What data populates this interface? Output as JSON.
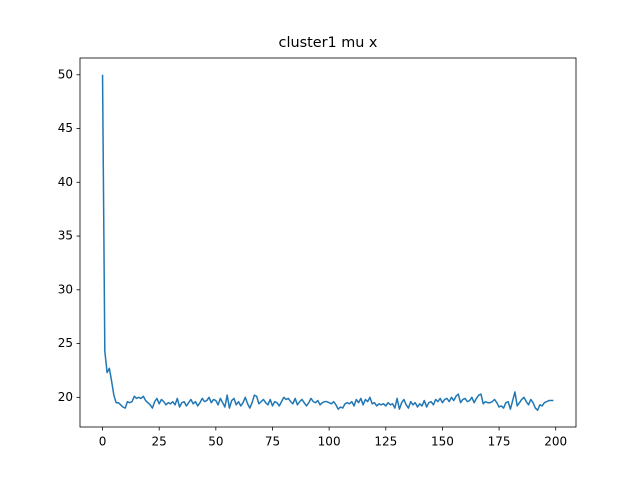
{
  "chart_data": {
    "type": "line",
    "title": "cluster1 mu x",
    "color": "#1f77b4",
    "x": [
      0,
      1,
      2,
      3,
      4,
      5,
      6,
      7,
      8,
      9,
      10,
      11,
      12,
      13,
      14,
      15,
      16,
      17,
      18,
      19,
      20,
      21,
      22,
      23,
      24,
      25,
      26,
      27,
      28,
      29,
      30,
      31,
      32,
      33,
      34,
      35,
      36,
      37,
      38,
      39,
      40,
      41,
      42,
      43,
      44,
      45,
      46,
      47,
      48,
      49,
      50,
      51,
      52,
      53,
      54,
      55,
      56,
      57,
      58,
      59,
      60,
      61,
      62,
      63,
      64,
      65,
      66,
      67,
      68,
      69,
      70,
      71,
      72,
      73,
      74,
      75,
      76,
      77,
      78,
      79,
      80,
      81,
      82,
      83,
      84,
      85,
      86,
      87,
      88,
      89,
      90,
      91,
      92,
      93,
      94,
      95,
      96,
      97,
      98,
      99,
      100,
      101,
      102,
      103,
      104,
      105,
      106,
      107,
      108,
      109,
      110,
      111,
      112,
      113,
      114,
      115,
      116,
      117,
      118,
      119,
      120,
      121,
      122,
      123,
      124,
      125,
      126,
      127,
      128,
      129,
      130,
      131,
      132,
      133,
      134,
      135,
      136,
      137,
      138,
      139,
      140,
      141,
      142,
      143,
      144,
      145,
      146,
      147,
      148,
      149,
      150,
      151,
      152,
      153,
      154,
      155,
      156,
      157,
      158,
      159,
      160,
      161,
      162,
      163,
      164,
      165,
      166,
      167,
      168,
      169,
      170,
      171,
      172,
      173,
      174,
      175,
      176,
      177,
      178,
      179,
      180,
      181,
      182,
      183,
      184,
      185,
      186,
      187,
      188,
      189,
      190,
      191,
      192,
      193,
      194,
      195,
      196,
      197,
      198,
      199
    ],
    "values": [
      50,
      24.3,
      22.3,
      22.7,
      21.5,
      20.2,
      19.5,
      19.5,
      19.3,
      19.1,
      19.0,
      19.6,
      19.5,
      19.6,
      20.1,
      19.9,
      20.0,
      19.9,
      20.1,
      19.7,
      19.5,
      19.3,
      19.0,
      19.6,
      19.9,
      19.4,
      19.8,
      19.6,
      19.3,
      19.5,
      19.4,
      19.6,
      19.3,
      19.9,
      19.1,
      19.5,
      19.6,
      19.2,
      19.5,
      19.8,
      19.4,
      19.6,
      19.2,
      19.5,
      19.9,
      19.6,
      19.7,
      20.0,
      19.5,
      19.8,
      19.7,
      19.3,
      19.9,
      19.5,
      19.1,
      20.2,
      19.0,
      19.7,
      19.9,
      19.3,
      19.6,
      19.2,
      19.5,
      20.0,
      19.4,
      19.0,
      19.5,
      20.2,
      20.1,
      19.4,
      19.6,
      19.8,
      19.5,
      19.3,
      19.8,
      19.2,
      19.6,
      19.5,
      19.2,
      19.6,
      20.0,
      19.8,
      19.9,
      19.6,
      19.4,
      19.9,
      19.3,
      19.6,
      19.8,
      19.5,
      19.2,
      19.5,
      19.9,
      19.6,
      19.5,
      19.7,
      19.3,
      19.5,
      19.6,
      19.6,
      19.5,
      19.4,
      19.6,
      19.3,
      18.9,
      19.1,
      19.0,
      19.4,
      19.5,
      19.4,
      19.6,
      19.2,
      19.8,
      19.5,
      19.9,
      19.3,
      19.8,
      19.6,
      20.0,
      19.4,
      19.5,
      19.2,
      19.4,
      19.3,
      19.4,
      19.2,
      19.5,
      19.3,
      19.4,
      19.0,
      19.9,
      18.9,
      19.5,
      19.8,
      19.3,
      19.0,
      19.6,
      19.3,
      19.5,
      19.1,
      19.4,
      19.2,
      19.7,
      19.1,
      19.5,
      19.6,
      19.3,
      19.8,
      19.6,
      19.9,
      19.5,
      19.8,
      19.9,
      19.6,
      20.0,
      19.7,
      20.1,
      20.3,
      19.5,
      19.8,
      19.9,
      19.6,
      19.7,
      20.0,
      19.5,
      19.9,
      20.2,
      20.3,
      19.4,
      19.6,
      19.5,
      19.5,
      19.6,
      19.8,
      19.5,
      19.1,
      19.2,
      19.0,
      19.5,
      19.6,
      18.9,
      19.7,
      20.5,
      19.2,
      19.5,
      19.8,
      20.0,
      19.6,
      19.3,
      19.8,
      19.5,
      19.0,
      18.8,
      19.3,
      19.2,
      19.5,
      19.6,
      19.7,
      19.7,
      19.7
    ],
    "xlim": [
      -9.95,
      208.95
    ],
    "xticks": [
      0,
      25,
      50,
      75,
      100,
      125,
      150,
      175,
      200
    ],
    "ylim": [
      17.24,
      51.56
    ],
    "yticks": [
      20,
      25,
      30,
      35,
      40,
      45,
      50
    ]
  }
}
